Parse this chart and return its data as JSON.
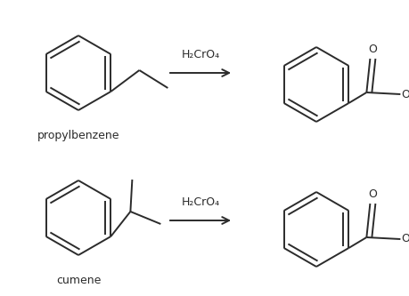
{
  "background_color": "#ffffff",
  "label_propylbenzene": "propylbenzene",
  "label_cumene": "cumene",
  "reagent": "H₂CrO₄",
  "label_fontsize": 9,
  "reagent_fontsize": 9,
  "line_color": "#2b2b2b",
  "line_width": 1.4,
  "fig_width": 4.59,
  "fig_height": 3.33,
  "dpi": 100
}
